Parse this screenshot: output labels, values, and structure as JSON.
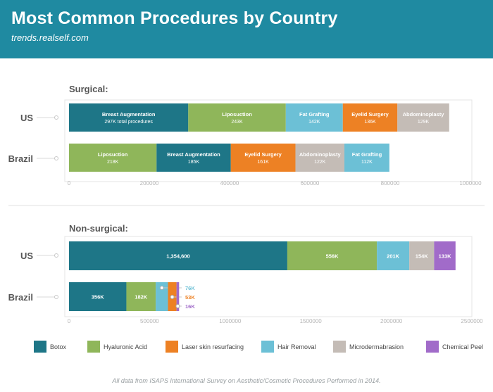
{
  "header": {
    "title": "Most Common Procedures by Country",
    "subtitle": "trends.realself.com"
  },
  "colors": {
    "header_bg": "#1f8aa1",
    "Botox": "#1e7687",
    "Hyaluronic Acid": "#8fb65a",
    "Laser skin resurfacing": "#ed8124",
    "Hair Removal": "#6cc0d6",
    "Microdermabrasion": "#c4bcb6",
    "Chemical Peel": "#a16bc9",
    "Breast Augmentation": "#1e7687",
    "Liposuction": "#8fb65a",
    "Fat Grafting": "#6cc0d6",
    "Eyelid Surgery": "#ed8124",
    "Abdominoplasty": "#c4bcb6"
  },
  "chart_data": [
    {
      "type": "bar",
      "orientation": "horizontal",
      "stacked": true,
      "title": "Surgical:",
      "categories": [
        "US",
        "Brazil"
      ],
      "xlim": [
        0,
        1000000
      ],
      "xticks": [
        0,
        200000,
        400000,
        600000,
        800000,
        1000000
      ],
      "xtick_labels": [
        "0",
        "200000",
        "400000",
        "600000",
        "800000",
        "1000000"
      ],
      "segments": [
        [
          {
            "name": "Breast Augmentation",
            "value": 297000,
            "label": "297K total procedures"
          },
          {
            "name": "Liposuction",
            "value": 243000,
            "label": "243K"
          },
          {
            "name": "Fat Grafting",
            "value": 142000,
            "label": "142K"
          },
          {
            "name": "Eyelid Surgery",
            "value": 136000,
            "label": "136K"
          },
          {
            "name": "Abdominoplasty",
            "value": 129000,
            "label": "129K"
          }
        ],
        [
          {
            "name": "Liposuction",
            "value": 218000,
            "label": "218K"
          },
          {
            "name": "Breast Augmentation",
            "value": 185000,
            "label": "185K"
          },
          {
            "name": "Eyelid Surgery",
            "value": 161000,
            "label": "161K"
          },
          {
            "name": "Abdominoplasty",
            "value": 122000,
            "label": "122K"
          },
          {
            "name": "Fat Grafting",
            "value": 112000,
            "label": "112K"
          }
        ]
      ]
    },
    {
      "type": "bar",
      "orientation": "horizontal",
      "stacked": true,
      "title": "Non-surgical:",
      "categories": [
        "US",
        "Brazil"
      ],
      "xlim": [
        0,
        2500000
      ],
      "xticks": [
        0,
        500000,
        1000000,
        1500000,
        2000000,
        2500000
      ],
      "xtick_labels": [
        "0",
        "500000",
        "1000000",
        "1500000",
        "2000000",
        "2500000"
      ],
      "segments": [
        [
          {
            "name": "Botox",
            "value": 1354600,
            "label": "1,354,600"
          },
          {
            "name": "Hyaluronic Acid",
            "value": 556000,
            "label": "556K"
          },
          {
            "name": "Hair Removal",
            "value": 201000,
            "label": "201K"
          },
          {
            "name": "Microdermabrasion",
            "value": 154000,
            "label": "154K"
          },
          {
            "name": "Chemical Peel",
            "value": 133000,
            "label": "133K"
          }
        ],
        [
          {
            "name": "Botox",
            "value": 356000,
            "label": "356K"
          },
          {
            "name": "Hyaluronic Acid",
            "value": 182000,
            "label": "182K"
          },
          {
            "name": "Hair Removal",
            "value": 76000,
            "label": "76K",
            "callout": true
          },
          {
            "name": "Laser skin resurfacing",
            "value": 53000,
            "label": "53K",
            "callout": true
          },
          {
            "name": "Chemical Peel",
            "value": 16000,
            "label": "16K",
            "callout": true
          }
        ]
      ]
    }
  ],
  "legend": {
    "items": [
      "Botox",
      "Hyaluronic Acid",
      "Laser skin resurfacing",
      "Hair Removal",
      "Microdermabrasion",
      "Chemical Peel"
    ]
  },
  "footer": {
    "note": "All data from ISAPS International Survey on Aesthetic/Cosmetic Procedures Performed in 2014."
  }
}
